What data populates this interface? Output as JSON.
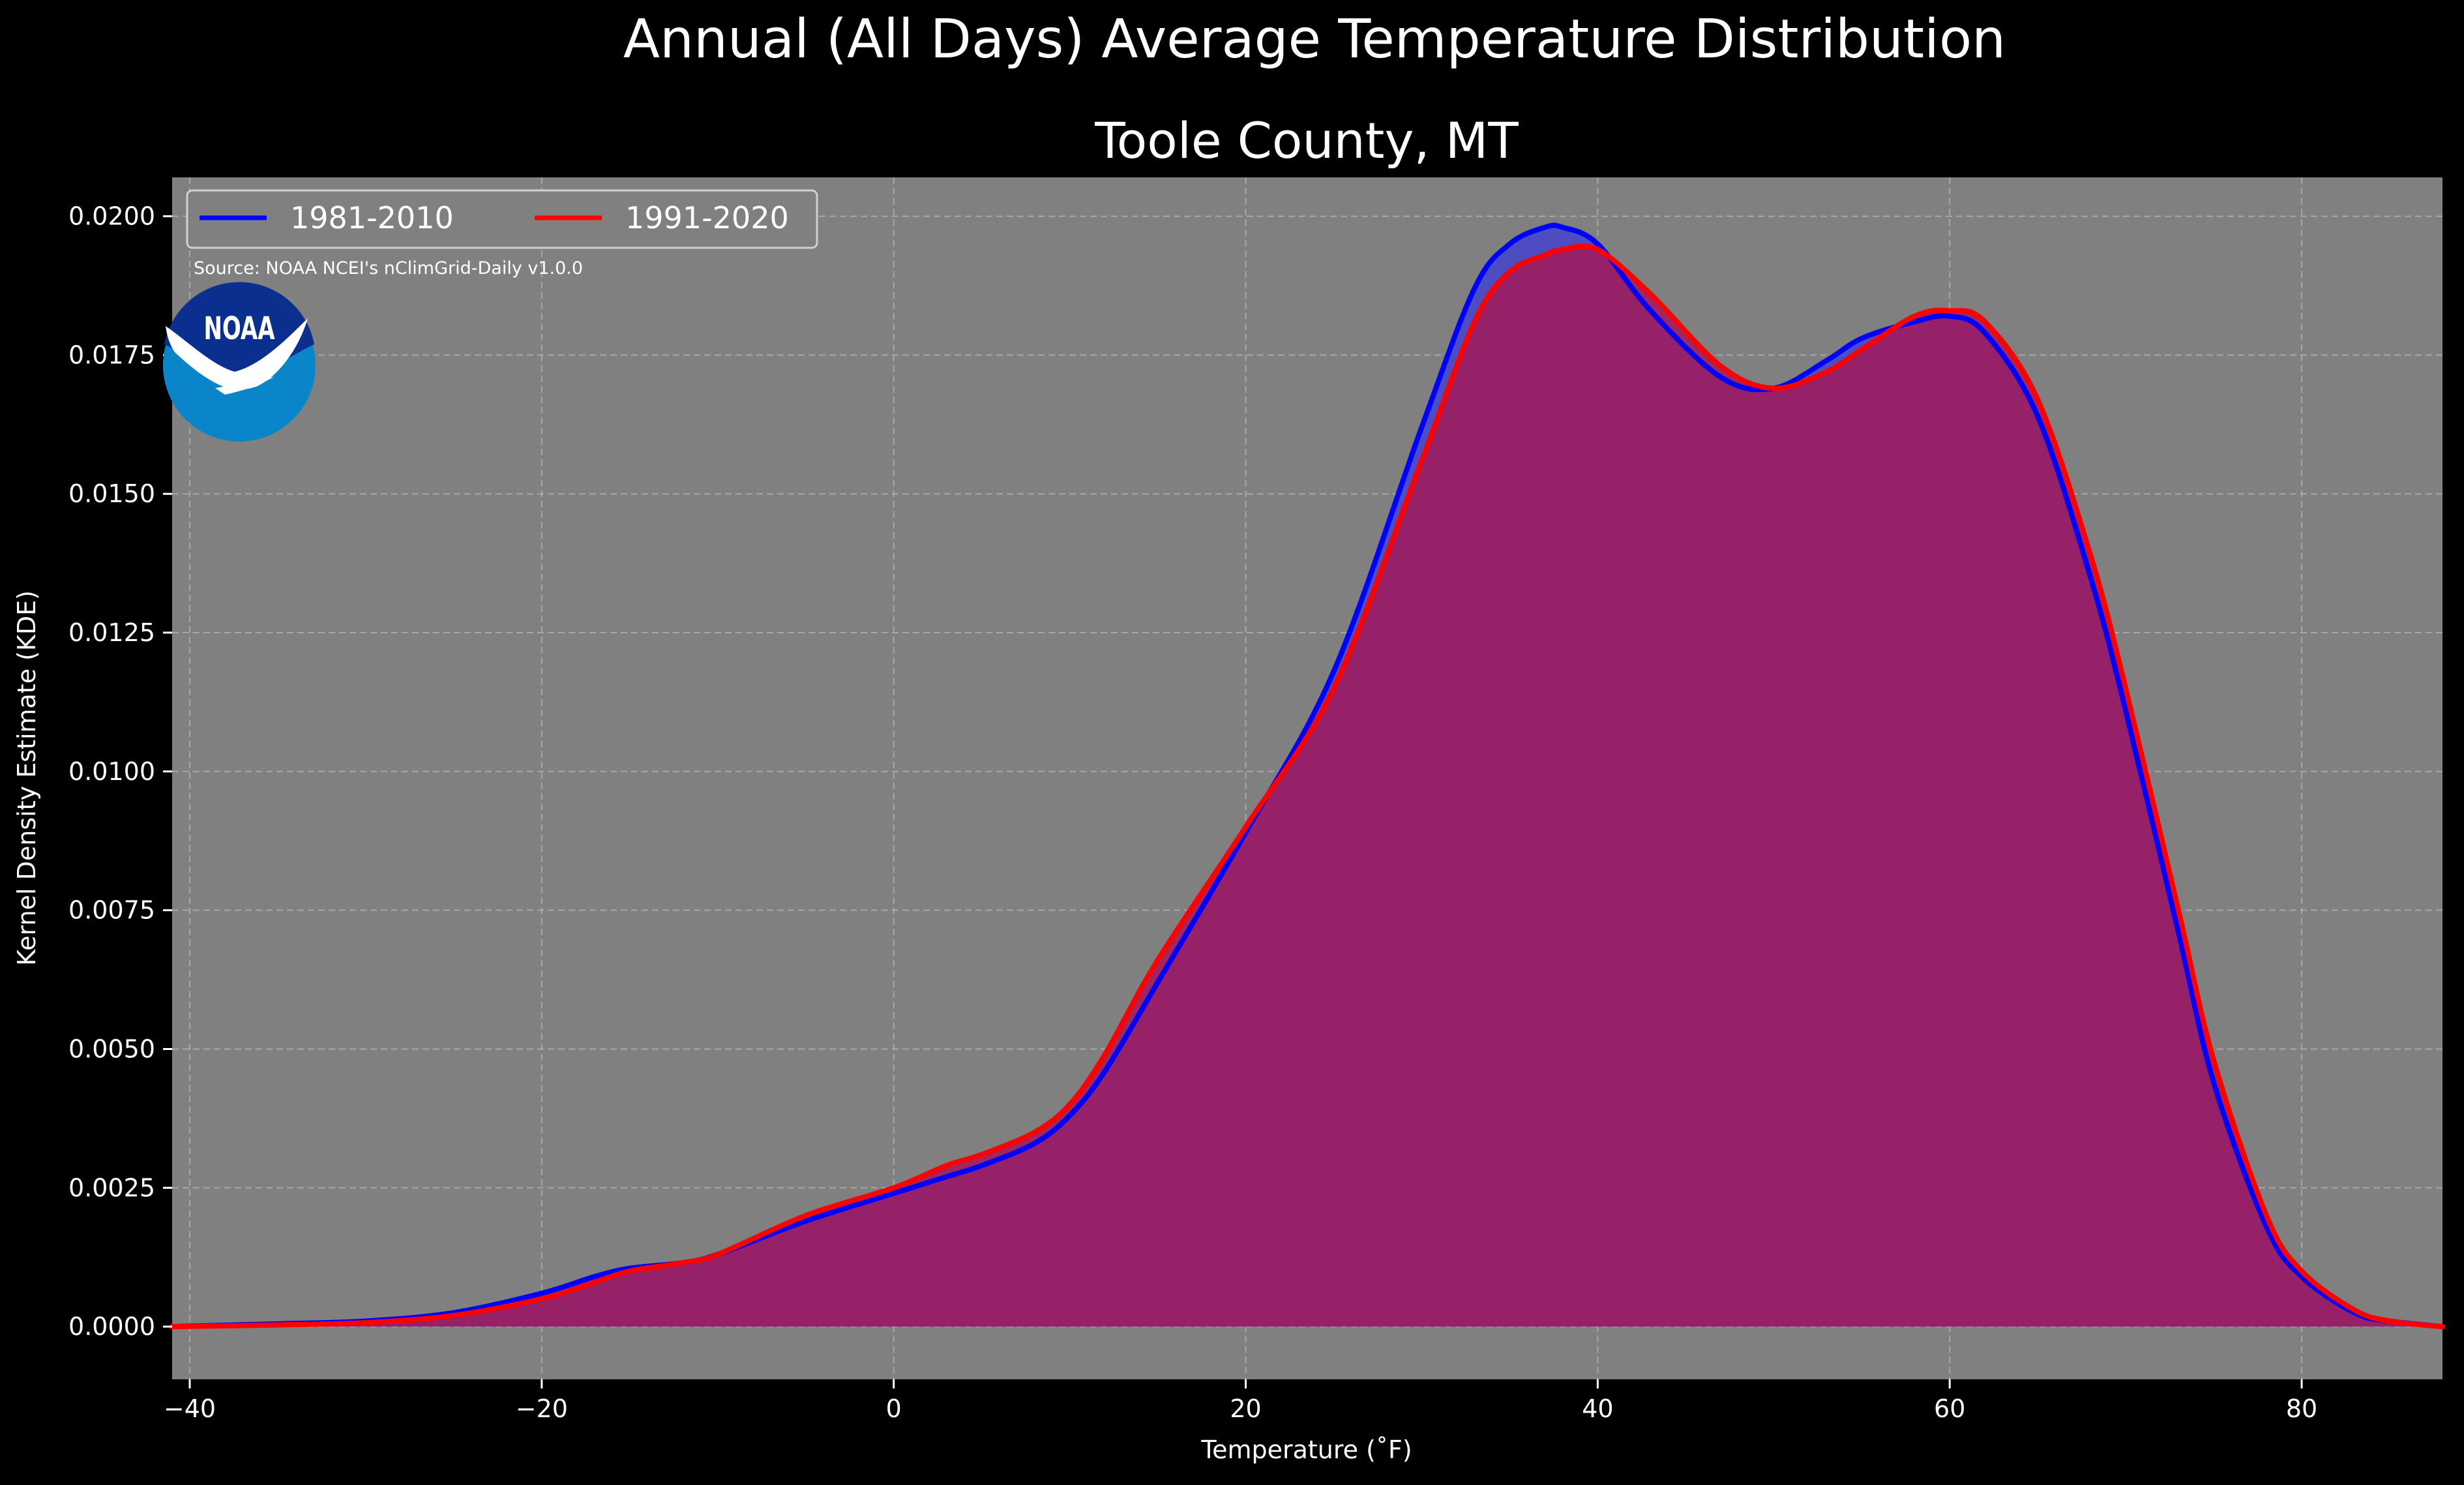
{
  "figure": {
    "suptitle": "Annual (All Days) Average Temperature Distribution",
    "source_note": "Source: NOAA NCEI's nClimGrid-Daily v1.0.0",
    "logo_text": "NOAA"
  },
  "colors": {
    "background": "#000000",
    "plot_background": "#808080",
    "text": "#ffffff",
    "grid": "#b8b8b8",
    "series_1981_2010": "#0000ff",
    "series_1991_2020": "#ff0000",
    "fill_1981_2010": "#4444cc",
    "fill_1991_2020": "#a01d5e",
    "logo_dark": "#0a2f8f",
    "logo_light": "#0a85c9"
  },
  "chart_data": {
    "type": "area",
    "title": "Toole County, MT",
    "xlabel": "Temperature ($^\\circ$F)",
    "xlabel_display": "Temperature (˚F)",
    "ylabel": "Kernel Density Estimate (KDE)",
    "xlim": [
      -41,
      88
    ],
    "ylim": [
      -0.00095,
      0.0207
    ],
    "xticks": [
      -40,
      -20,
      0,
      20,
      40,
      60,
      80
    ],
    "xtick_labels": [
      "−40",
      "−20",
      "0",
      "20",
      "40",
      "60",
      "80"
    ],
    "yticks": [
      0,
      0.0025,
      0.005,
      0.0075,
      0.01,
      0.0125,
      0.015,
      0.0175,
      0.02
    ],
    "ytick_labels": [
      "0.0000",
      "0.0025",
      "0.0050",
      "0.0075",
      "0.0100",
      "0.0125",
      "0.0150",
      "0.0175",
      "0.0200"
    ],
    "grid": true,
    "legend_position": "top-left",
    "x": [
      -41,
      -35,
      -30,
      -25,
      -20,
      -17,
      -15,
      -12,
      -10,
      -5,
      0,
      3,
      5,
      8,
      10,
      12,
      15,
      20,
      25,
      30,
      33,
      35,
      37,
      38,
      40,
      43,
      47,
      50,
      53,
      55,
      58,
      60,
      62,
      65,
      68,
      70,
      73,
      75,
      78,
      80,
      83,
      85,
      88
    ],
    "series": [
      {
        "name": "1981-2010",
        "color": "#0000ff",
        "values": [
          0.0,
          5e-05,
          0.0001,
          0.00025,
          0.0006,
          0.0009,
          0.00105,
          0.00115,
          0.0013,
          0.0019,
          0.0024,
          0.0027,
          0.0029,
          0.0033,
          0.0038,
          0.0046,
          0.0062,
          0.0089,
          0.0118,
          0.0162,
          0.0187,
          0.0195,
          0.0198,
          0.0198,
          0.0195,
          0.0183,
          0.0171,
          0.0169,
          0.0174,
          0.0178,
          0.0181,
          0.0182,
          0.0179,
          0.0164,
          0.0135,
          0.0111,
          0.0071,
          0.0044,
          0.0018,
          0.0009,
          0.00025,
          0.0001,
          0.0
        ],
        "fill": "#4444cc"
      },
      {
        "name": "1991-2020",
        "color": "#ff0000",
        "values": [
          0.0,
          3e-05,
          7e-05,
          0.0002,
          0.0005,
          0.0008,
          0.001,
          0.00115,
          0.0013,
          0.002,
          0.0025,
          0.0029,
          0.0031,
          0.0035,
          0.004,
          0.0049,
          0.0066,
          0.009,
          0.0115,
          0.0156,
          0.0181,
          0.019,
          0.0193,
          0.0194,
          0.0194,
          0.0186,
          0.0173,
          0.0169,
          0.0172,
          0.0176,
          0.0182,
          0.0183,
          0.0181,
          0.0167,
          0.0139,
          0.0115,
          0.0075,
          0.0048,
          0.002,
          0.001,
          0.0003,
          0.0001,
          0.0
        ],
        "fill": "#a01d5e"
      }
    ]
  }
}
